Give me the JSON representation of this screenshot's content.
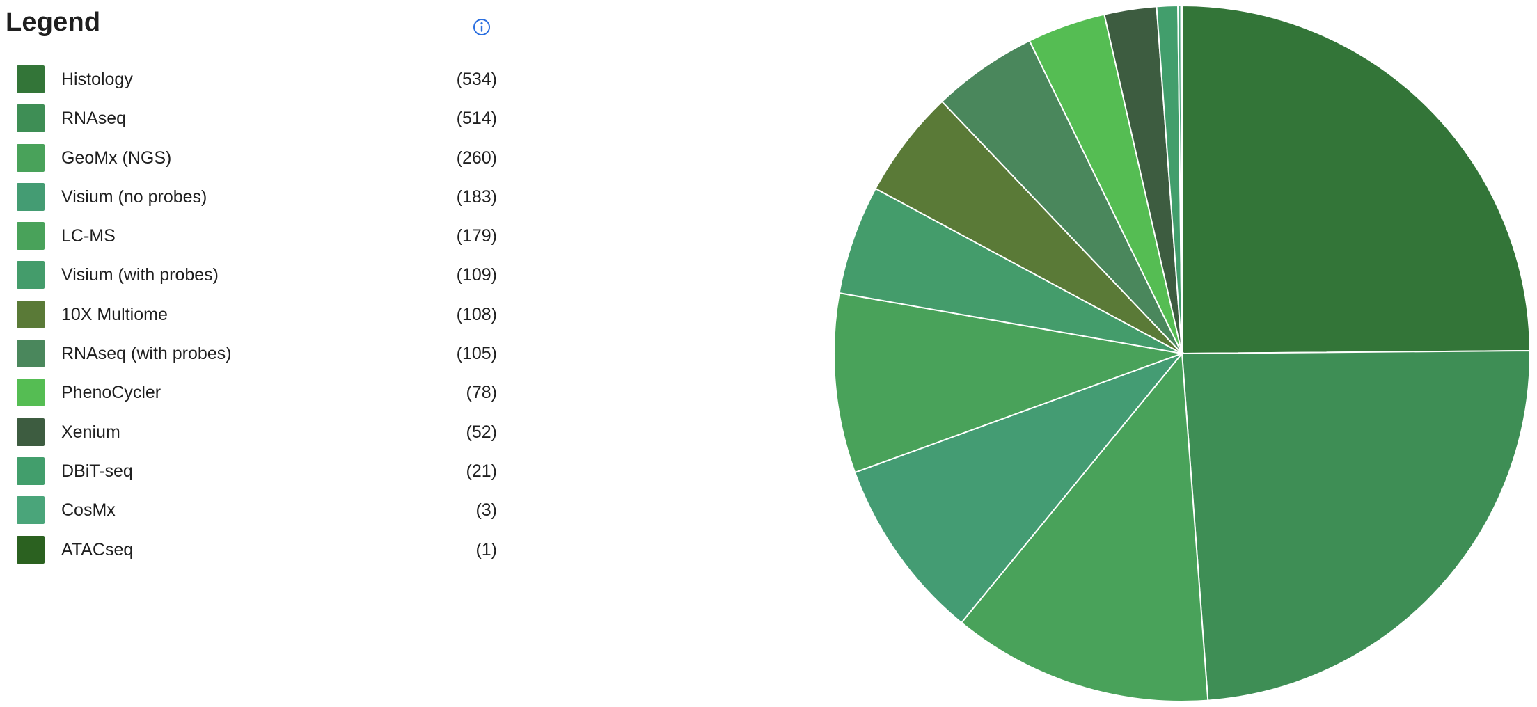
{
  "legend": {
    "title": "Legend",
    "info_icon": "info-icon"
  },
  "chart_data": {
    "type": "pie",
    "categories": [
      "Histology",
      "RNAseq",
      "GeoMx (NGS)",
      "Visium (no probes)",
      "LC-MS",
      "Visium (with probes)",
      "10X Multiome",
      "RNAseq (with probes)",
      "PhenoCycler",
      "Xenium",
      "DBiT-seq",
      "CosMx",
      "ATACseq"
    ],
    "values": [
      534,
      514,
      260,
      183,
      179,
      109,
      108,
      105,
      78,
      52,
      21,
      3,
      1
    ],
    "count_labels": [
      "(534)",
      "(514)",
      "(260)",
      "(183)",
      "(179)",
      "(109)",
      "(108)",
      "(105)",
      "(78)",
      "(52)",
      "(21)",
      "(3)",
      "(1)"
    ],
    "colors": [
      "#337538",
      "#3e8e55",
      "#49a25a",
      "#449c73",
      "#49a25a",
      "#449c6b",
      "#5a7a37",
      "#4a875c",
      "#55bd53",
      "#3d5c40",
      "#429e6c",
      "#4aa57a",
      "#2b6120"
    ],
    "legend_placement": "left",
    "start_angle_deg": 0,
    "direction": "clockwise"
  }
}
